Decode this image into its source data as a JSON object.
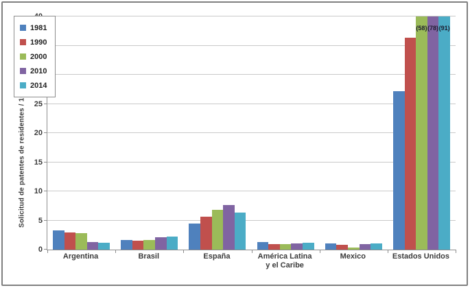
{
  "chart_data": {
    "type": "bar",
    "title": "",
    "xlabel": "",
    "ylabel": "Solicitud de patentes de residentes / 100.000 habitantes",
    "ylim": [
      0,
      40
    ],
    "ytick_step": 5,
    "ytick_labels": [
      "0",
      "5",
      "10",
      "15",
      "20",
      "25",
      "30",
      "35",
      "40"
    ],
    "grid": "horizontal",
    "legend_position": "top-left",
    "categories": [
      "Argentina",
      "Brasil",
      "España",
      "América Latina y el Caribe",
      "Mexico",
      "Estados Unidos"
    ],
    "series": [
      {
        "name": "1981",
        "color": "#4F81BD",
        "values": [
          3.3,
          1.7,
          4.5,
          1.3,
          1.1,
          27.2
        ]
      },
      {
        "name": "1990",
        "color": "#C0504D",
        "values": [
          2.9,
          1.5,
          5.7,
          1.0,
          0.8,
          36.3
        ]
      },
      {
        "name": "2000",
        "color": "#9BBB59",
        "values": [
          2.8,
          1.7,
          6.8,
          1.0,
          0.4,
          58
        ]
      },
      {
        "name": "2010",
        "color": "#8064A2",
        "values": [
          1.3,
          2.1,
          7.7,
          1.1,
          0.9,
          78
        ]
      },
      {
        "name": "2014",
        "color": "#4BACC6",
        "values": [
          1.2,
          2.2,
          6.4,
          1.2,
          1.1,
          91
        ]
      }
    ],
    "clipped_bar_labels": [
      {
        "category": "Estados Unidos",
        "series": "2000",
        "text": "(58)"
      },
      {
        "category": "Estados Unidos",
        "series": "2010",
        "text": "(78)"
      },
      {
        "category": "Estados Unidos",
        "series": "2014",
        "text": "(91)"
      }
    ],
    "axis_color": "#8c8c8c",
    "gridline_color": "#c9c9c9"
  }
}
